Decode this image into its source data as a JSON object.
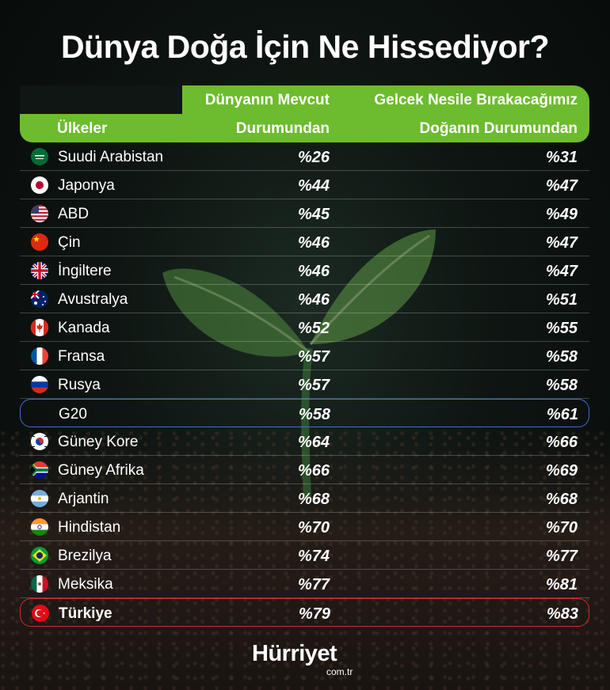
{
  "title": "Dünya Doğa İçin Ne Hissediyor?",
  "header": {
    "countries": "Ülkeler",
    "col1_line1": "Dünyanın Mevcut",
    "col1_line2": "Durumundan",
    "col2_line1": "Gelcek Nesile Bırakacağımız",
    "col2_line2": "Doğanın Durumundan"
  },
  "rows": [
    {
      "country": "Suudi Arabistan",
      "current": "%26",
      "future": "%31",
      "flag": "saudi-arabia-flag-icon"
    },
    {
      "country": "Japonya",
      "current": "%44",
      "future": "%47",
      "flag": "japan-flag-icon"
    },
    {
      "country": "ABD",
      "current": "%45",
      "future": "%49",
      "flag": "usa-flag-icon"
    },
    {
      "country": "Çin",
      "current": "%46",
      "future": "%47",
      "flag": "china-flag-icon"
    },
    {
      "country": "İngiltere",
      "current": "%46",
      "future": "%47",
      "flag": "uk-flag-icon"
    },
    {
      "country": "Avustralya",
      "current": "%46",
      "future": "%51",
      "flag": "australia-flag-icon"
    },
    {
      "country": "Kanada",
      "current": "%52",
      "future": "%55",
      "flag": "canada-flag-icon"
    },
    {
      "country": "Fransa",
      "current": "%57",
      "future": "%58",
      "flag": "france-flag-icon"
    },
    {
      "country": "Rusya",
      "current": "%57",
      "future": "%58",
      "flag": "russia-flag-icon"
    },
    {
      "country": "G20",
      "current": "%58",
      "future": "%61",
      "flag": ""
    },
    {
      "country": "Güney Kore",
      "current": "%64",
      "future": "%66",
      "flag": "south-korea-flag-icon"
    },
    {
      "country": "Güney Afrika",
      "current": "%66",
      "future": "%69",
      "flag": "south-africa-flag-icon"
    },
    {
      "country": "Arjantin",
      "current": "%68",
      "future": "%68",
      "flag": "argentina-flag-icon"
    },
    {
      "country": "Hindistan",
      "current": "%70",
      "future": "%70",
      "flag": "india-flag-icon"
    },
    {
      "country": "Brezilya",
      "current": "%74",
      "future": "%77",
      "flag": "brazil-flag-icon"
    },
    {
      "country": "Meksika",
      "current": "%77",
      "future": "%81",
      "flag": "mexico-flag-icon"
    },
    {
      "country": "Türkiye",
      "current": "%79",
      "future": "%83",
      "flag": "turkey-flag-icon"
    }
  ],
  "logo": {
    "name": "Hürriyet",
    "domain": "com.tr"
  },
  "colors": {
    "header_green": "#6dbb2e",
    "g20_outline": "#3f6fd1",
    "turkey_outline": "#d62828"
  }
}
